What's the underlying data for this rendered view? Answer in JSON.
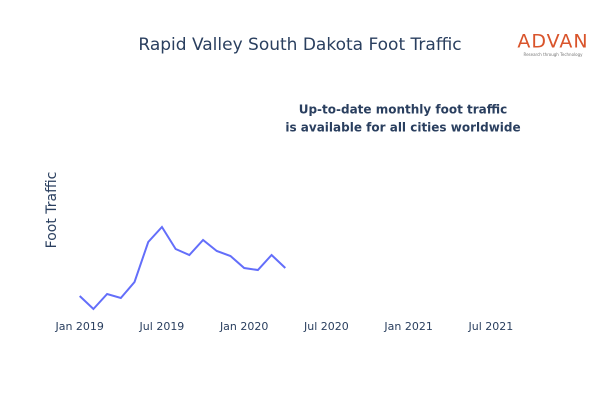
{
  "chart_data": {
    "type": "line",
    "title": "Rapid Valley South Dakota Foot Traffic",
    "annotation": [
      "Up-to-date monthly foot traffic",
      "is available for all cities worldwide"
    ],
    "logo": {
      "name": "ADVAN",
      "tagline": "Research through Technology"
    },
    "ylabel": "Foot Traffic",
    "x": [
      "2019-01",
      "2019-02",
      "2019-03",
      "2019-04",
      "2019-05",
      "2019-06",
      "2019-07",
      "2019-08",
      "2019-09",
      "2019-10",
      "2019-11",
      "2019-12",
      "2020-01",
      "2020-02",
      "2020-03",
      "2020-04"
    ],
    "series": [
      {
        "name": "Foot Traffic",
        "color": "#636efa",
        "values": [
          19,
          6,
          21,
          17,
          33,
          73,
          88,
          66,
          60,
          75,
          64,
          59,
          47,
          45,
          60,
          47
        ]
      }
    ],
    "xlim": [
      "2018-12",
      "2021-10"
    ],
    "ylim": [
      0,
      100
    ],
    "xticks": [
      {
        "value": "2019-01",
        "label": "Jan 2019"
      },
      {
        "value": "2019-07",
        "label": "Jul 2019"
      },
      {
        "value": "2020-01",
        "label": "Jan 2020"
      },
      {
        "value": "2020-07",
        "label": "Jul 2020"
      },
      {
        "value": "2021-01",
        "label": "Jan 2021"
      },
      {
        "value": "2021-07",
        "label": "Jul 2021"
      }
    ]
  }
}
